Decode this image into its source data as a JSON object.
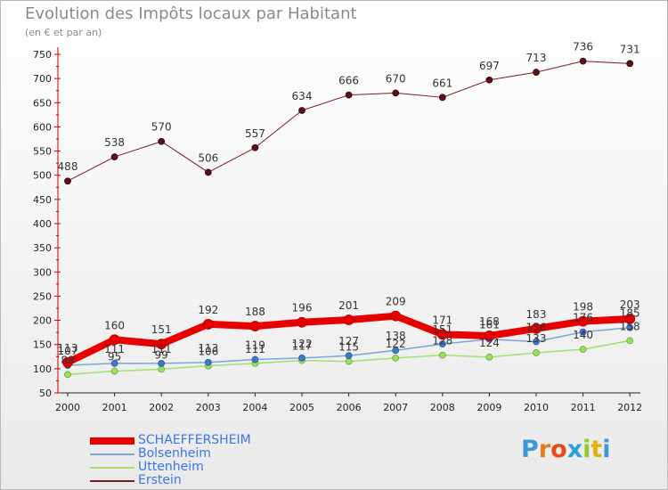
{
  "header": {
    "title": "Evolution des Impôts locaux par Habitant",
    "subtitle": "(en € et par an)"
  },
  "brand": {
    "logo_text": "Proxiti"
  },
  "colors": {
    "schaeffersheim": "#e80000",
    "bolsenheim": "#78a6d8",
    "uttenheim": "#a0e070",
    "erstein": "#7a1a22",
    "legend_text": "#3a74ee"
  },
  "chart_data": {
    "type": "line",
    "title": "Evolution des Impôts locaux par Habitant",
    "subtitle": "(en € et par an)",
    "xlabel": "",
    "ylabel": "",
    "ylim": [
      50,
      750
    ],
    "y_ticks": [
      50,
      100,
      150,
      200,
      250,
      300,
      350,
      400,
      450,
      500,
      550,
      600,
      650,
      700,
      750
    ],
    "grid": false,
    "legend_position": "bottom-left",
    "categories": [
      "2000",
      "2001",
      "2002",
      "2003",
      "2004",
      "2005",
      "2006",
      "2007",
      "2008",
      "2009",
      "2010",
      "2011",
      "2012"
    ],
    "series": [
      {
        "name": "SCHAEFFERSHEIM",
        "values": [
          113,
          160,
          151,
          192,
          188,
          196,
          201,
          209,
          171,
          168,
          183,
          198,
          203
        ]
      },
      {
        "name": "Bolsenheim",
        "values": [
          107,
          111,
          111,
          113,
          119,
          122,
          127,
          138,
          151,
          161,
          156,
          176,
          185
        ]
      },
      {
        "name": "Uttenheim",
        "values": [
          88,
          95,
          99,
          106,
          111,
          117,
          115,
          122,
          128,
          124,
          133,
          140,
          158
        ]
      },
      {
        "name": "Erstein",
        "values": [
          488,
          538,
          570,
          506,
          557,
          634,
          666,
          670,
          661,
          697,
          713,
          736,
          731
        ]
      }
    ],
    "data_labels": [
      {
        "series": "SCHAEFFERSHEIM",
        "values": [
          "113",
          "160",
          "151",
          "192",
          "188",
          "196",
          "201",
          "209",
          "171",
          "168",
          "183",
          "198",
          "203"
        ]
      },
      {
        "series": "Bolsenheim",
        "values": [
          "107",
          "111",
          "111",
          "113",
          "119",
          "122",
          "127",
          "138",
          "151",
          "161",
          "156",
          "176",
          "185"
        ]
      },
      {
        "series": "Uttenheim",
        "values": [
          "88",
          "95",
          "99",
          "106",
          "111",
          "117",
          "115",
          "122",
          "128",
          "124",
          "133",
          "140",
          "158"
        ]
      },
      {
        "series": "Erstein",
        "values": [
          "488",
          "538",
          "570",
          "506",
          "557",
          "634",
          "666",
          "670",
          "661",
          "697",
          "713",
          "736",
          "731"
        ]
      }
    ]
  }
}
